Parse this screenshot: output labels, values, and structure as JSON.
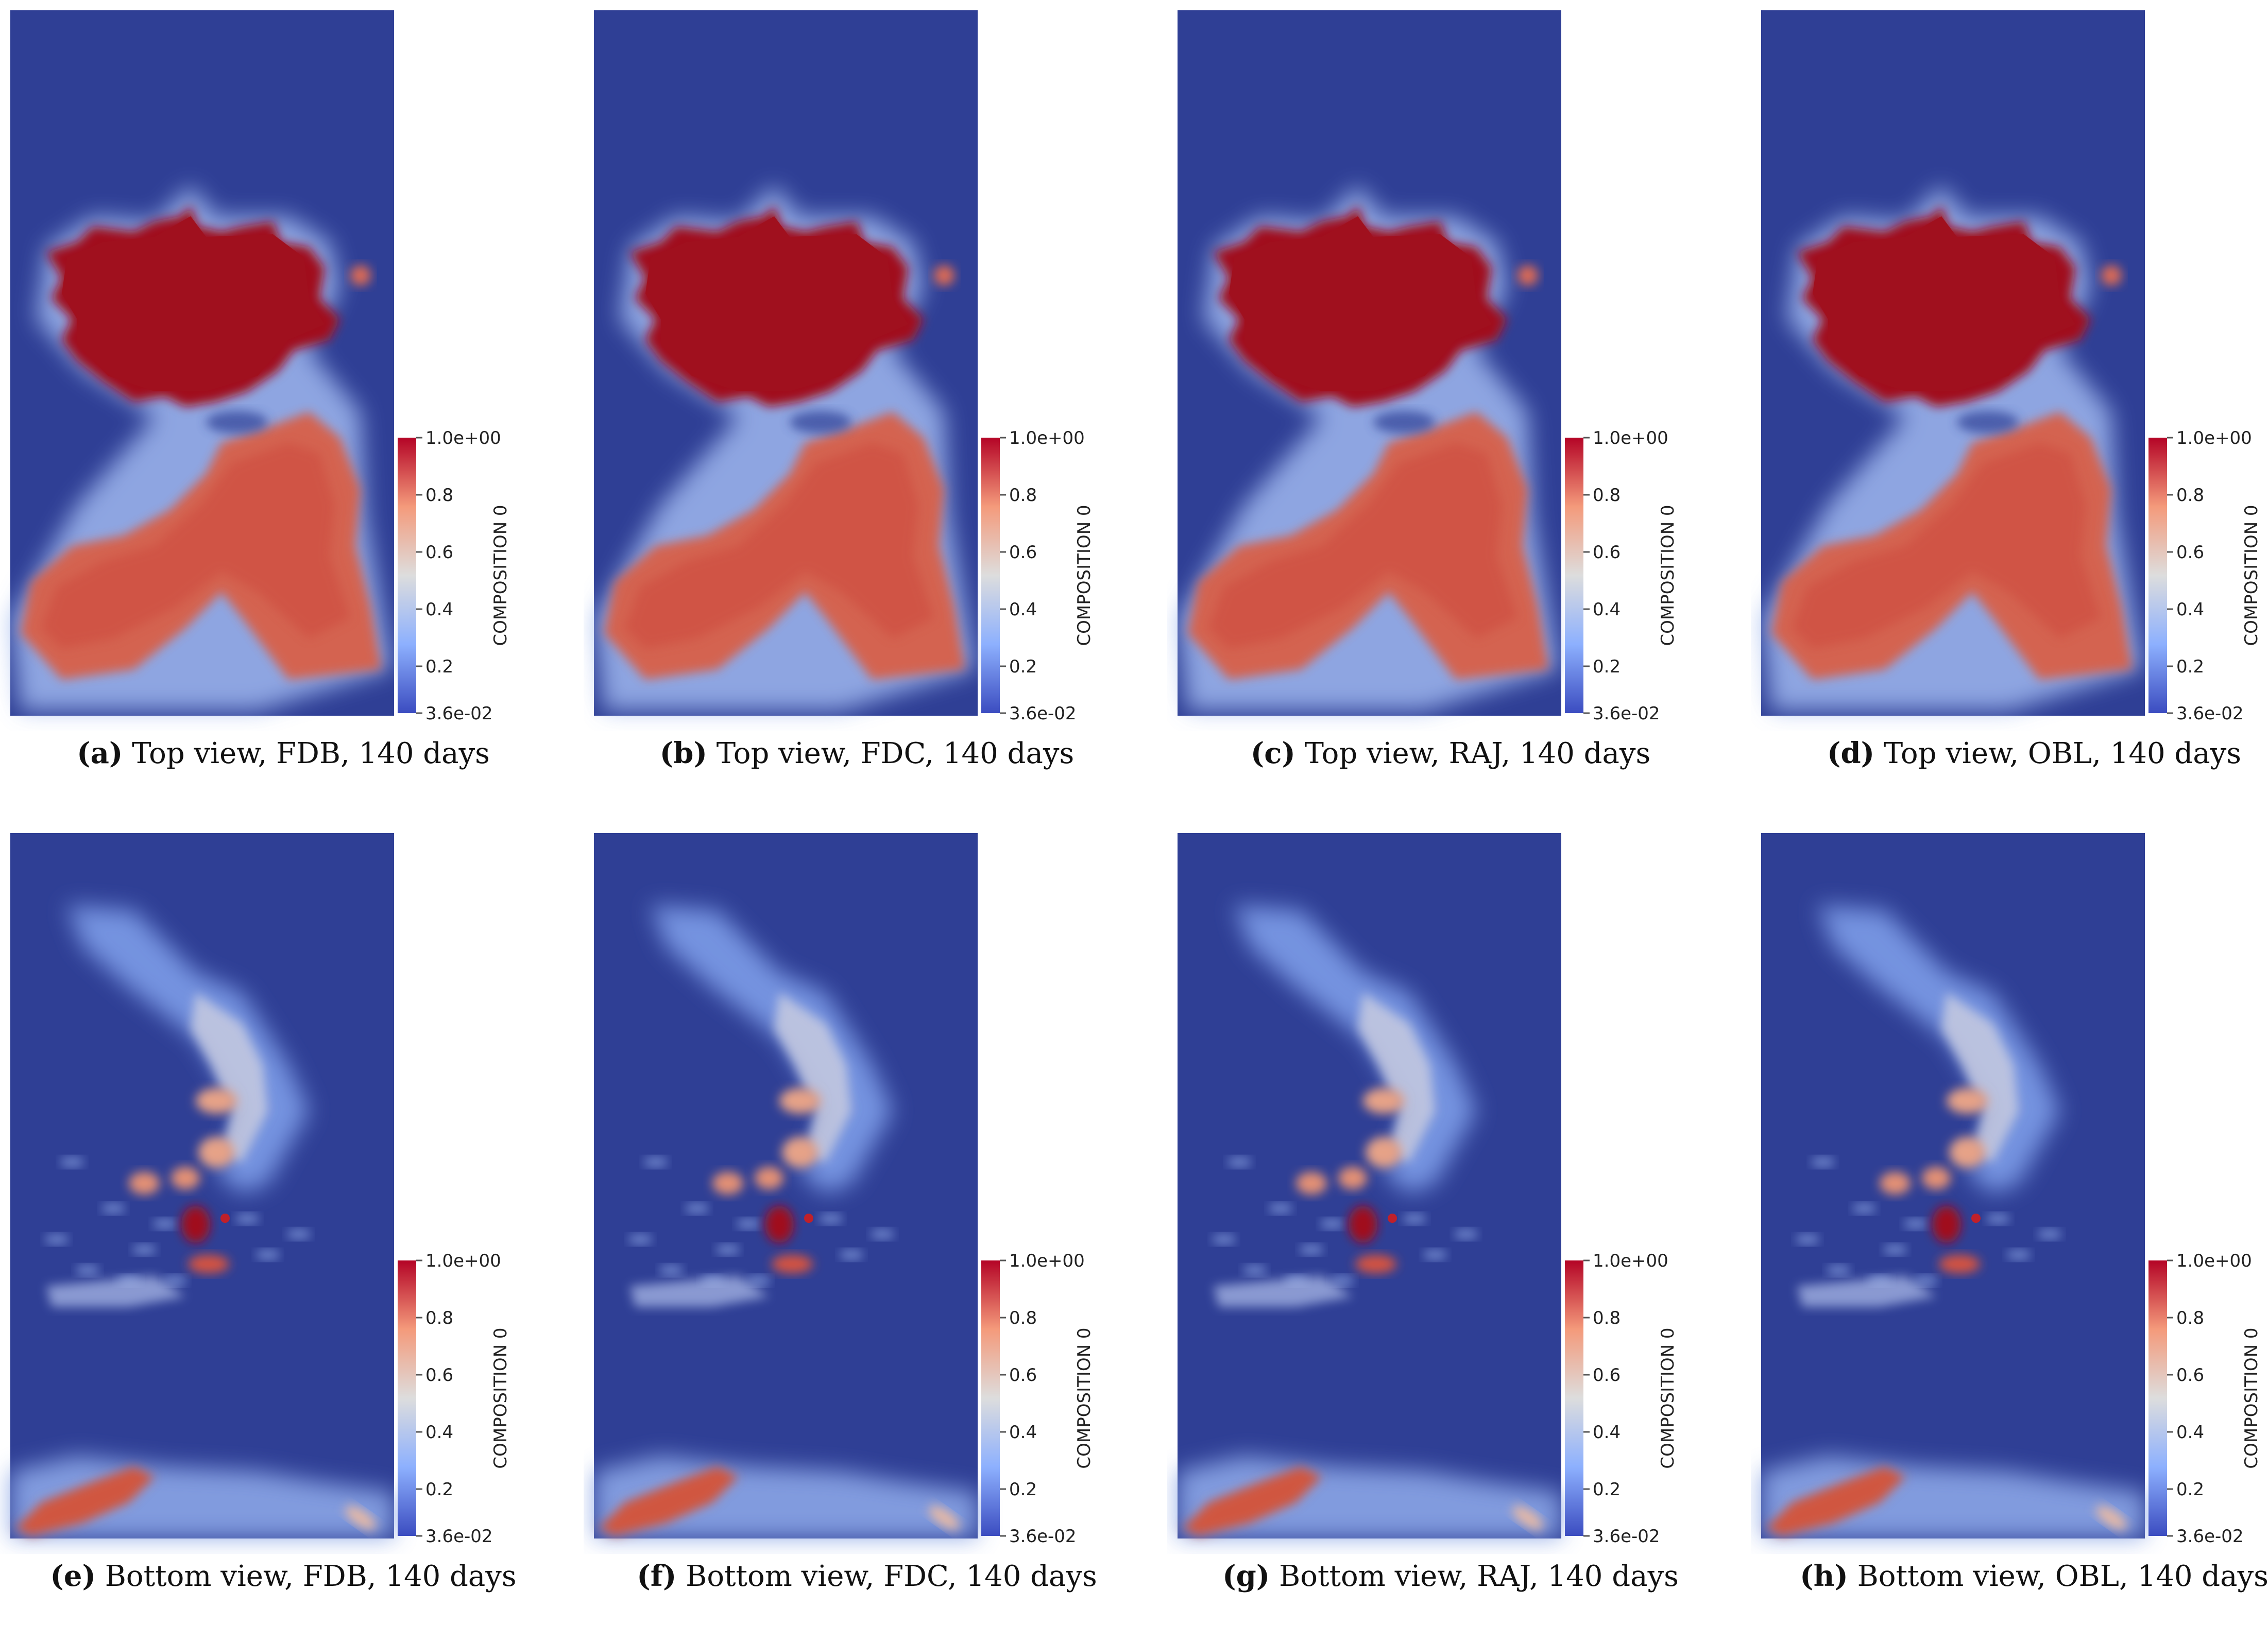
{
  "colorbar": {
    "title": "COMPOSITION 0",
    "ticks": [
      "1.0e+00",
      "0.8",
      "0.6",
      "0.4",
      "0.2",
      "3.6e-02"
    ],
    "tick_values": [
      1.0,
      0.8,
      0.6,
      0.4,
      0.2,
      0.036
    ],
    "colormap": [
      "#3b4cc0",
      "#8db0fe",
      "#dddddd",
      "#f49a7b",
      "#b40426"
    ]
  },
  "colors": {
    "background_field": "#2f3f95",
    "plume_high": "#a0101e",
    "plume_mid": "#d8604a"
  },
  "panels": [
    {
      "label": "(a)",
      "text": " Top view, FDB, 140 days",
      "view": "top"
    },
    {
      "label": "(b)",
      "text": " Top view, FDC, 140 days",
      "view": "top"
    },
    {
      "label": "(c)",
      "text": " Top view, RAJ, 140 days",
      "view": "top"
    },
    {
      "label": "(d)",
      "text": " Top view, OBL, 140 days",
      "view": "top"
    },
    {
      "label": "(e)",
      "text": " Bottom view, FDB, 140 days",
      "view": "bottom"
    },
    {
      "label": "(f)",
      "text": " Bottom view, FDC, 140 days",
      "view": "bottom"
    },
    {
      "label": "(g)",
      "text": " Bottom view, RAJ, 140 days",
      "view": "bottom"
    },
    {
      "label": "(h)",
      "text": " Bottom view, OBL, 140 days",
      "view": "bottom"
    }
  ]
}
